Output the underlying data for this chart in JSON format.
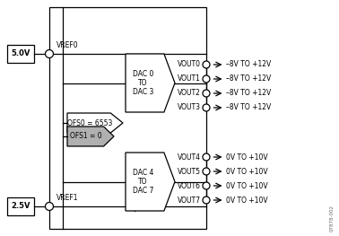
{
  "fig_width": 3.78,
  "fig_height": 2.63,
  "dpi": 100,
  "bg_color": "#ffffff",
  "box_5v_label": "5.0V",
  "box_2v5_label": "2.5V",
  "vref0_label": "VREF0",
  "vref1_label": "VREF1",
  "ofs0_label": "OFS0 = 6553",
  "ofs1_label": "OFS1 = 0",
  "dac03_label": "DAC 0\nTO\nDAC 3",
  "dac47_label": "DAC 4\nTO\nDAC 7",
  "vout_labels": [
    "VOUT0",
    "VOUT1",
    "VOUT2",
    "VOUT3",
    "VOUT4",
    "VOUT5",
    "VOUT6",
    "VOUT7"
  ],
  "vout_ranges_top": [
    "–8V TO +12V",
    "–8V TO +12V",
    "–8V TO +12V",
    "–8V TO +12V"
  ],
  "vout_ranges_bot": [
    "0V TO +10V",
    "0V TO +10V",
    "0V TO +10V",
    "0V TO +10V"
  ],
  "watermark": "07878-002",
  "line_color": "#000000",
  "text_color": "#000000",
  "gray_fill": "#b0b0b0"
}
